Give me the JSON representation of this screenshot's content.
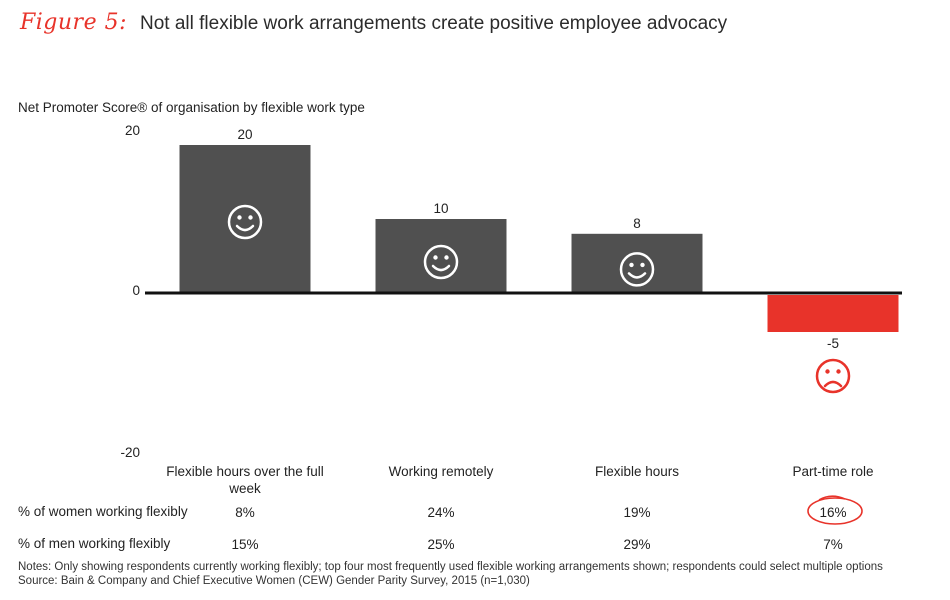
{
  "figure": {
    "label": "Figure 5:",
    "title": "Not all flexible work arrangements create positive employee advocacy"
  },
  "chart_data": {
    "type": "bar",
    "title": "Not all flexible work arrangements create positive employee advocacy",
    "ylabel": "Net Promoter Score® of organisation by flexible work type",
    "xlabel": "",
    "ylim": [
      -20,
      20
    ],
    "yticks": [
      "20",
      "0",
      "-20"
    ],
    "categories": [
      "Flexible hours over the full week",
      "Working remotely",
      "Flexible hours",
      "Part-time role"
    ],
    "values": [
      20,
      10,
      8,
      -5
    ],
    "data_labels": [
      "20",
      "10",
      "8",
      "-5"
    ],
    "annotations": [
      "smiley-face",
      "smiley-face",
      "smiley-face",
      "sad-face"
    ],
    "colors": {
      "positive": "#505050",
      "negative": "#e8332a",
      "face_on_bar": "#ffffff",
      "face_off_bar": "#e8332a"
    }
  },
  "table": {
    "rows": [
      {
        "label": "% of women working flexibly",
        "values": [
          "8%",
          "24%",
          "19%",
          "16%"
        ],
        "highlight_index": 3
      },
      {
        "label": "% of men working flexibly",
        "values": [
          "15%",
          "25%",
          "29%",
          "7%"
        ]
      }
    ],
    "highlight_color": "#e8332a"
  },
  "notes": {
    "line1": "Notes: Only showing respondents currently working flexibly; top four most frequently used flexible working arrangements shown; respondents could select multiple options",
    "line2": "Source: Bain & Company and Chief Executive Women (CEW) Gender Parity Survey, 2015 (n=1,030)"
  }
}
